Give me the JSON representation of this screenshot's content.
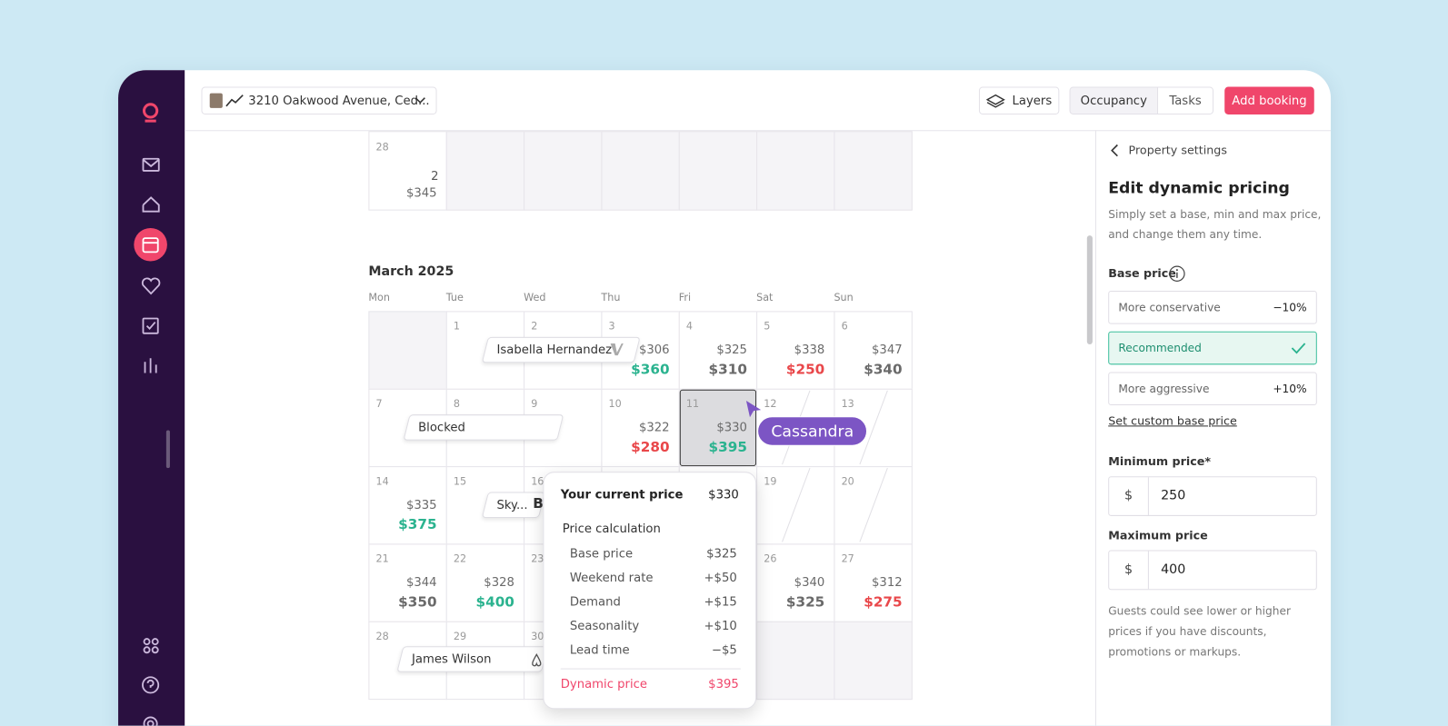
{
  "header": {
    "property": "3210 Oakwood Avenue, Ced...",
    "layers": "Layers",
    "tabs": [
      "Occupancy",
      "Tasks"
    ],
    "add_booking": "Add booking"
  },
  "calendar": {
    "previous": {
      "day": "28",
      "nights": "2",
      "price": "$345"
    },
    "month": "March 2025",
    "weekdays": [
      "Mon",
      "Tue",
      "Wed",
      "Thu",
      "Fri",
      "Sat",
      "Sun"
    ],
    "weeks": [
      [
        null,
        {
          "day": "1"
        },
        {
          "day": "2"
        },
        {
          "day": "3",
          "price": "$306",
          "dynamic": "$360",
          "dynamic_color": "#2bb38f"
        },
        {
          "day": "4",
          "price": "$325",
          "dynamic": "$310"
        },
        {
          "day": "5",
          "price": "$338",
          "dynamic": "$250",
          "dynamic_color": "#e9474a"
        },
        {
          "day": "6",
          "price": "$347",
          "dynamic": "$340"
        }
      ],
      [
        {
          "day": "7"
        },
        {
          "day": "8"
        },
        {
          "day": "9"
        },
        {
          "day": "10",
          "price": "$322",
          "dynamic": "$280",
          "dynamic_color": "#e9474a"
        },
        {
          "day": "11",
          "price": "$330",
          "dynamic": "$395",
          "dynamic_color": "#2bb38f"
        },
        {
          "day": "12"
        },
        {
          "day": "13"
        }
      ],
      [
        {
          "day": "14",
          "price": "$335",
          "dynamic": "$375",
          "dynamic_color": "#2bb38f"
        },
        {
          "day": "15"
        },
        {
          "day": "16"
        },
        null,
        null,
        {
          "day": "19"
        },
        {
          "day": "20"
        }
      ],
      [
        {
          "day": "21",
          "price": "$344",
          "dynamic": "$350"
        },
        {
          "day": "22",
          "price": "$328",
          "dynamic": "$400",
          "dynamic_color": "#2bb38f"
        },
        {
          "day": "23"
        },
        null,
        null,
        {
          "day": "26",
          "price": "$340",
          "dynamic": "$325"
        },
        {
          "day": "27",
          "price": "$312",
          "dynamic": "$275",
          "dynamic_color": "#e9474a"
        }
      ],
      [
        {
          "day": "28"
        },
        {
          "day": "29"
        },
        {
          "day": "30"
        },
        null,
        null,
        null,
        null
      ]
    ],
    "bookings": [
      {
        "guest": "Isabella Hernandez"
      },
      {
        "guest": "Blocked"
      },
      {
        "guest": "Sky...",
        "channel": "B"
      },
      {
        "guest": "James Wilson"
      }
    ],
    "collaborator": "Cassandra"
  },
  "tooltip": {
    "current_label": "Your current price",
    "current": "$330",
    "calc_title": "Price calculation",
    "items": [
      {
        "label": "Base price",
        "value": "$325"
      },
      {
        "label": "Weekend rate",
        "value": "+$50"
      },
      {
        "label": "Demand",
        "value": "+$15"
      },
      {
        "label": "Seasonality",
        "value": "+$10"
      },
      {
        "label": "Lead time",
        "value": "−$5"
      }
    ],
    "total_label": "Dynamic price",
    "total": "$395"
  },
  "panel": {
    "back": "Property settings",
    "title": "Edit dynamic pricing",
    "description": "Simply set a base, min and max price, and change them any time.",
    "base_price": "Base price",
    "options": [
      {
        "label": "More conservative",
        "adjustment": "−10%"
      },
      {
        "label": "Recommended"
      },
      {
        "label": "More aggressive",
        "adjustment": "+10%"
      }
    ],
    "custom_link": "Set custom base price",
    "minimum": {
      "label": "Minimum price*",
      "currency": "$",
      "value": "250"
    },
    "maximum": {
      "label": "Maximum price",
      "currency": "$",
      "value": "400"
    },
    "note": "Guests could see lower or higher prices if you have discounts, promotions or markups."
  }
}
